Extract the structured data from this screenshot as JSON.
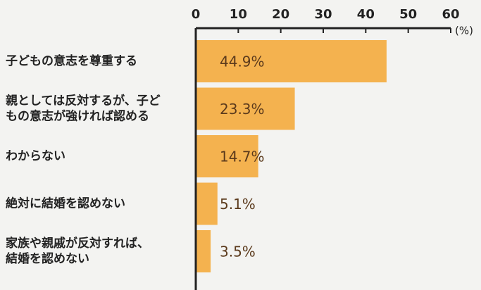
{
  "chart_data": {
    "type": "barh",
    "categories": [
      [
        "子どもの意志を尊重する"
      ],
      [
        "親としては反対するが、子ど",
        "もの意志が強ければ認める"
      ],
      [
        "わからない"
      ],
      [
        "絶対に結婚を認めない"
      ],
      [
        "家族や親戚が反対すれば、",
        "結婚を認めない"
      ]
    ],
    "values": [
      44.9,
      23.3,
      14.7,
      5.1,
      3.5
    ],
    "value_labels": [
      "44.9%",
      "23.3%",
      "14.7%",
      "5.1%",
      "3.5%"
    ],
    "color": "#f4b24f",
    "xlim": [
      0,
      60
    ],
    "xticks": [
      0,
      10,
      20,
      30,
      40,
      50,
      60
    ],
    "x_unit": "(%)"
  }
}
